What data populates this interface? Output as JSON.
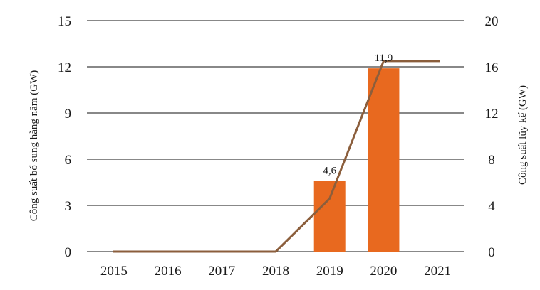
{
  "chart_data": {
    "type": "bar",
    "categories": [
      "2015",
      "2016",
      "2017",
      "2018",
      "2019",
      "2020",
      "2021"
    ],
    "series": [
      {
        "type": "bar",
        "axis": "left",
        "values": [
          0,
          0,
          0,
          0,
          4.6,
          11.9,
          0
        ]
      },
      {
        "type": "line",
        "axis": "right",
        "values": [
          0,
          0,
          0,
          0,
          4.6,
          16.5,
          16.5
        ]
      }
    ],
    "data_labels": [
      {
        "category": "2019",
        "text": "4,6"
      },
      {
        "category": "2020",
        "text": "11,9"
      }
    ],
    "ylabel": "Công suất bổ sung hàng năm (GW)",
    "y2label": "Công suất lũy kế (GW)",
    "ylim": [
      0,
      15
    ],
    "y2lim": [
      0,
      20
    ],
    "yticks": [
      "0",
      "3",
      "6",
      "9",
      "12",
      "15"
    ],
    "y2ticks": [
      "0",
      "4",
      "8",
      "12",
      "16",
      "20"
    ],
    "grid": true,
    "colors": {
      "bar": "#E8691F",
      "line": "#8B5E3C",
      "grid": "#404040"
    }
  }
}
